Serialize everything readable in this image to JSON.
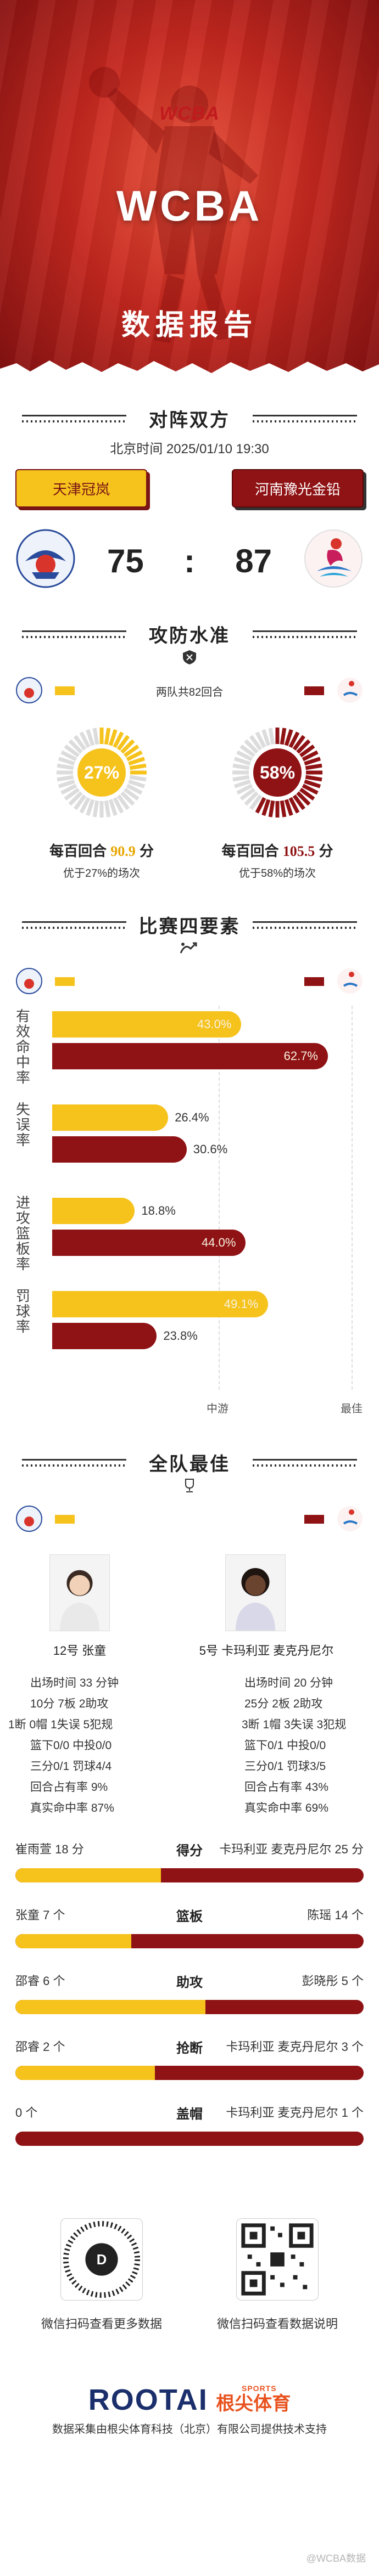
{
  "hero": {
    "logo_text": "WCBA",
    "title": "WCBA",
    "subtitle": "数据报告"
  },
  "matchup": {
    "section_title": "对阵双方",
    "time": "北京时间 2025/01/10 19:30",
    "home_team": "天津冠岚",
    "away_team": "河南豫光金铅",
    "home_score": "75",
    "separator": ":",
    "away_score": "87"
  },
  "offense_defense": {
    "section_title": "攻防水准",
    "possessions_note": "两队共82回合",
    "home": {
      "percentile": 27,
      "percentile_label": "27%",
      "line_prefix": "每百回合",
      "pts_per_100": "90.9",
      "line_suffix": "分",
      "sub": "优于27%的场次"
    },
    "away": {
      "percentile": 58,
      "percentile_label": "58%",
      "line_prefix": "每百回合",
      "pts_per_100": "105.5",
      "line_suffix": "分",
      "sub": "优于58%的场次"
    }
  },
  "four_factors": {
    "section_title": "比赛四要素",
    "scale_mid": "中游",
    "scale_max": "最佳",
    "chart_data": {
      "type": "bar",
      "categories": [
        "有效命中率",
        "失误率",
        "进攻篮板率",
        "罚球率"
      ],
      "series": [
        {
          "values": [
            43.0,
            26.4,
            18.8,
            49.1
          ]
        },
        {
          "values": [
            62.7,
            30.6,
            44.0,
            23.8
          ]
        }
      ],
      "labels_home": [
        "43.0%",
        "26.4%",
        "18.8%",
        "49.1%"
      ],
      "labels_away": [
        "62.7%",
        "30.6%",
        "44.0%",
        "23.8%"
      ],
      "xlim": [
        0,
        70
      ]
    }
  },
  "best_players": {
    "section_title": "全队最佳",
    "home_player": {
      "name": "12号 张童",
      "minutes": "出场时间 33 分钟",
      "line1": "10分  7板  2助攻",
      "line2": "1断  0帽  1失误  5犯规",
      "fg2": "篮下0/0    中投0/0",
      "fg3": "三分0/1    罚球4/4",
      "usage": "回合占有率 9%",
      "ts": "真实命中率 87%"
    },
    "away_player": {
      "name": "5号 卡玛利亚 麦克丹尼尔",
      "minutes": "出场时间 20 分钟",
      "line1": "25分  2板  2助攻",
      "line2": "3断  1帽  3失误  3犯规",
      "fg2": "篮下0/1    中投0/0",
      "fg3": "三分0/1    罚球3/5",
      "usage": "回合占有率 43%",
      "ts": "真实命中率 69%"
    },
    "leaders": [
      {
        "category": "得分",
        "home": "崔雨萱 18 分",
        "away": "卡玛利亚 麦克丹尼尔 25 分",
        "home_val": 18,
        "away_val": 25
      },
      {
        "category": "篮板",
        "home": "张童 7 个",
        "away": "陈瑶 14 个",
        "home_val": 7,
        "away_val": 14
      },
      {
        "category": "助攻",
        "home": "邵睿 6 个",
        "away": "彭晓彤 5 个",
        "home_val": 6,
        "away_val": 5
      },
      {
        "category": "抢断",
        "home": "邵睿 2 个",
        "away": "卡玛利亚 麦克丹尼尔 3 个",
        "home_val": 2,
        "away_val": 3
      },
      {
        "category": "盖帽",
        "home": "0 个",
        "away": "卡玛利亚 麦克丹尼尔 1 个",
        "home_val": 0,
        "away_val": 1
      }
    ]
  },
  "footer": {
    "qr_left_caption": "微信扫码查看更多数据",
    "qr_right_caption": "微信扫码查看数据说明",
    "brand_name": "ROOTAI",
    "brand_sports": "SPORTS",
    "brand_cn": "根尖体育",
    "disclaimer": "数据采集由根尖体育科技（北京）有限公司提供技术支持",
    "watermark": "@WCBA数据"
  },
  "colors": {
    "home": "#f6c21c",
    "away": "#8f1214",
    "hero_red": "#c5281f"
  }
}
